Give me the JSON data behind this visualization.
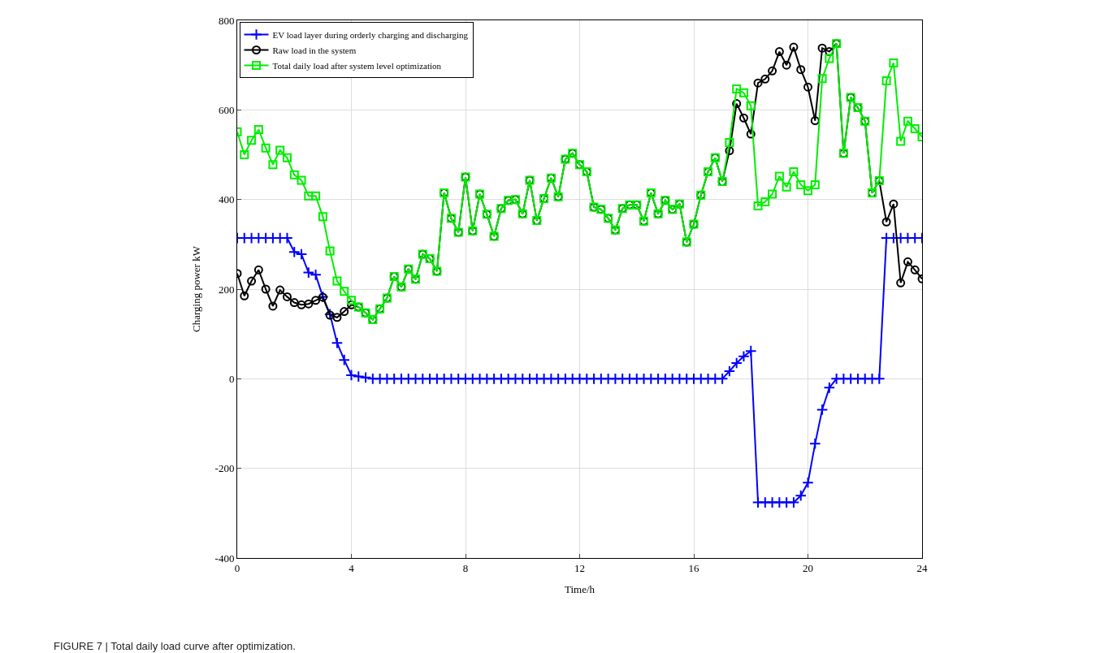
{
  "chart_data": {
    "type": "line",
    "xlabel": "Time/h",
    "ylabel": "Charging power kW",
    "annotations": [
      "FIGURE 7 | Total daily load curve after optimization."
    ],
    "x": [
      0,
      0.25,
      0.5,
      0.75,
      1,
      1.25,
      1.5,
      1.75,
      2,
      2.25,
      2.5,
      2.75,
      3,
      3.25,
      3.5,
      3.75,
      4,
      4.25,
      4.5,
      4.75,
      5,
      5.25,
      5.5,
      5.75,
      6,
      6.25,
      6.5,
      6.75,
      7,
      7.25,
      7.5,
      7.75,
      8,
      8.25,
      8.5,
      8.75,
      9,
      9.25,
      9.5,
      9.75,
      10,
      10.25,
      10.5,
      10.75,
      11,
      11.25,
      11.5,
      11.75,
      12,
      12.25,
      12.5,
      12.75,
      13,
      13.25,
      13.5,
      13.75,
      14,
      14.25,
      14.5,
      14.75,
      15,
      15.25,
      15.5,
      15.75,
      16,
      16.25,
      16.5,
      16.75,
      17,
      17.25,
      17.5,
      17.75,
      18,
      18.25,
      18.5,
      18.75,
      19,
      19.25,
      19.5,
      19.75,
      20,
      20.25,
      20.5,
      20.75,
      21,
      21.25,
      21.5,
      21.75,
      22,
      22.25,
      22.5,
      22.75,
      23,
      23.25,
      23.5,
      23.75,
      24
    ],
    "series": [
      {
        "name": "EV load layer during orderly charging and discharging",
        "color": "#0000ff",
        "marker": "cross",
        "values": [
          314,
          314,
          314,
          314,
          314,
          314,
          314,
          314,
          283,
          278,
          237,
          232,
          183,
          144,
          80,
          42,
          8,
          5,
          3,
          0,
          0,
          0,
          0,
          0,
          0,
          0,
          0,
          0,
          0,
          0,
          0,
          0,
          0,
          0,
          0,
          0,
          0,
          0,
          0,
          0,
          0,
          0,
          0,
          0,
          0,
          0,
          0,
          0,
          0,
          0,
          0,
          0,
          0,
          0,
          0,
          0,
          0,
          0,
          0,
          0,
          0,
          0,
          0,
          0,
          0,
          0,
          0,
          0,
          0,
          17,
          35,
          50,
          62,
          -276,
          -276,
          -276,
          -276,
          -276,
          -276,
          -261,
          -232,
          -145,
          -69,
          -20,
          0,
          0,
          0,
          0,
          0,
          0,
          0,
          314,
          314,
          314,
          314,
          314,
          314
        ]
      },
      {
        "name": "Raw load in the system",
        "color": "#000000",
        "marker": "circle",
        "values": [
          235,
          185,
          218,
          243,
          200,
          162,
          198,
          183,
          170,
          165,
          167,
          175,
          182,
          142,
          137,
          150,
          165,
          160,
          147,
          132,
          156,
          180,
          228,
          205,
          245,
          222,
          278,
          268,
          240,
          415,
          358,
          327,
          450,
          330,
          412,
          367,
          318,
          380,
          398,
          400,
          368,
          443,
          353,
          402,
          448,
          406,
          490,
          503,
          478,
          462,
          383,
          378,
          358,
          332,
          380,
          388,
          388,
          352,
          415,
          368,
          398,
          378,
          390,
          305,
          345,
          410,
          462,
          493,
          440,
          509,
          614,
          582,
          546,
          660,
          669,
          687,
          730,
          700,
          740,
          690,
          651,
          576,
          738,
          730,
          748,
          503,
          628,
          605,
          575,
          415,
          442,
          350,
          390,
          214,
          261,
          243,
          223
        ]
      },
      {
        "name": "Total daily load after system level optimization",
        "color": "#00ee00",
        "marker": "square",
        "values": [
          551,
          500,
          532,
          556,
          515,
          478,
          510,
          493,
          455,
          443,
          408,
          408,
          362,
          285,
          218,
          195,
          175,
          160,
          147,
          132,
          156,
          180,
          228,
          205,
          245,
          222,
          278,
          268,
          240,
          415,
          358,
          327,
          450,
          330,
          412,
          367,
          318,
          380,
          398,
          400,
          368,
          443,
          353,
          402,
          448,
          406,
          490,
          503,
          478,
          462,
          383,
          378,
          358,
          332,
          380,
          388,
          388,
          352,
          415,
          368,
          398,
          378,
          390,
          305,
          345,
          410,
          462,
          493,
          440,
          527,
          647,
          638,
          609,
          386,
          395,
          412,
          452,
          428,
          462,
          433,
          420,
          433,
          670,
          715,
          748,
          503,
          628,
          605,
          575,
          415,
          442,
          665,
          705,
          530,
          575,
          558,
          540
        ]
      }
    ],
    "xlim": [
      0,
      24
    ],
    "xticks": [
      0,
      4,
      8,
      12,
      16,
      20,
      24
    ],
    "ylim": [
      -400,
      800
    ],
    "yticks": [
      -400,
      -200,
      0,
      200,
      400,
      600,
      800
    ],
    "grid": true,
    "legend": "top left",
    "line_style": "solid"
  }
}
